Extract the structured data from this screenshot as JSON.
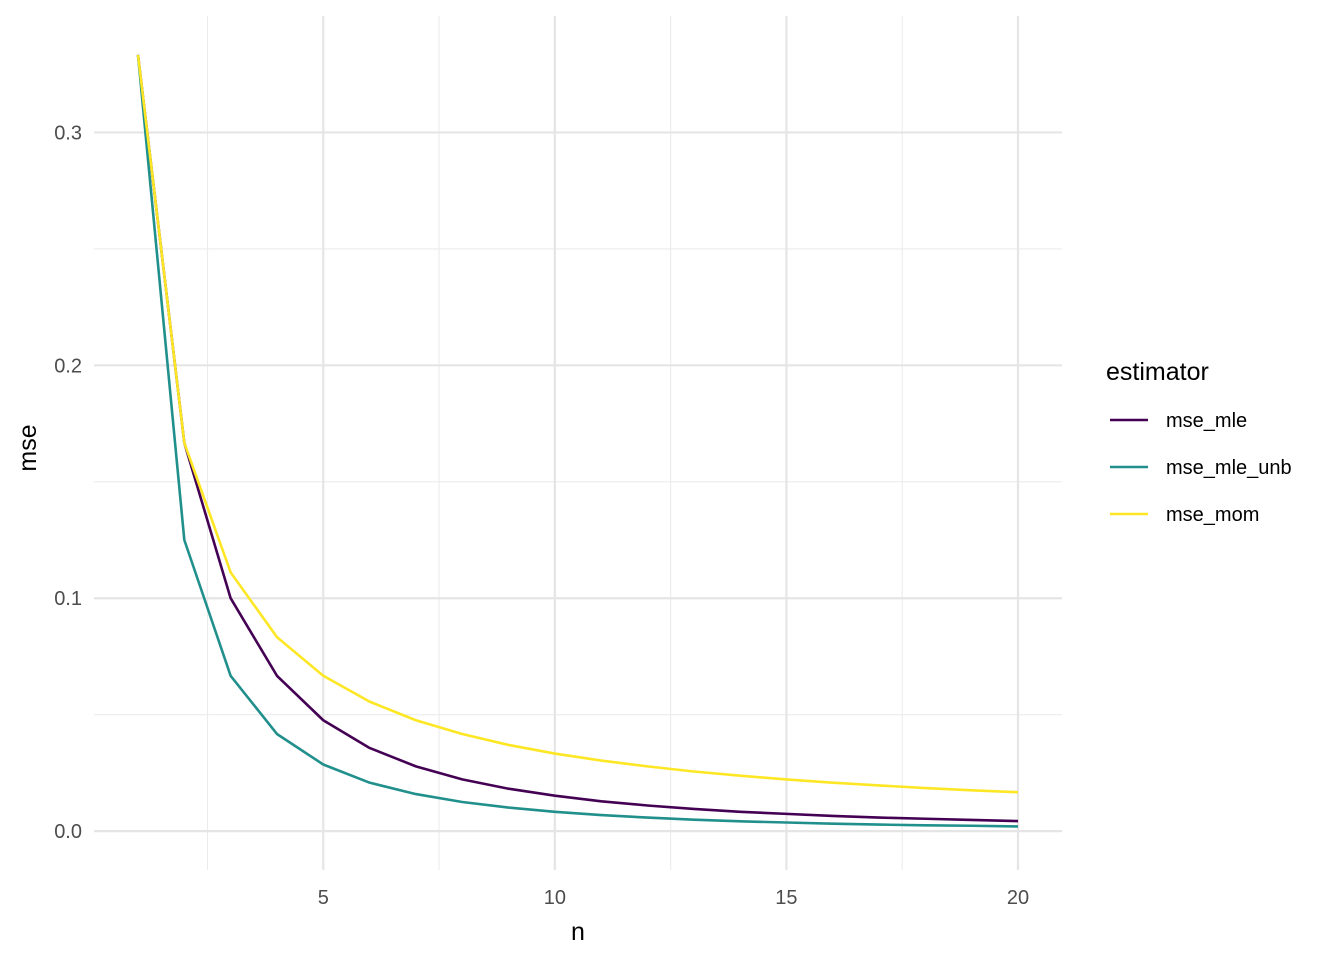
{
  "chart_data": {
    "type": "line",
    "xlabel": "n",
    "ylabel": "mse",
    "xlim": [
      0.05,
      20.95
    ],
    "ylim": [
      -0.0167,
      0.35
    ],
    "x_major_ticks": [
      5,
      10,
      15,
      20
    ],
    "x_minor_ticks": [
      2.5,
      7.5,
      12.5,
      17.5
    ],
    "y_major_ticks": [
      0.0,
      0.1,
      0.2,
      0.3
    ],
    "y_minor_ticks": [
      0.05,
      0.15,
      0.25
    ],
    "x_tick_labels": [
      "5",
      "10",
      "15",
      "20"
    ],
    "y_tick_labels": [
      "0.0",
      "0.1",
      "0.2",
      "0.3"
    ],
    "grid": true,
    "legend": {
      "title": "estimator",
      "position": "right"
    },
    "x": [
      1,
      2,
      3,
      4,
      5,
      6,
      7,
      8,
      9,
      10,
      11,
      12,
      13,
      14,
      15,
      16,
      17,
      18,
      19,
      20
    ],
    "series": [
      {
        "name": "mse_mle",
        "color": "#440154",
        "values": [
          0.3333,
          0.1667,
          0.1,
          0.0667,
          0.0476,
          0.0357,
          0.0278,
          0.0222,
          0.0182,
          0.0152,
          0.0128,
          0.011,
          0.0095,
          0.0083,
          0.0074,
          0.0065,
          0.0058,
          0.0053,
          0.0048,
          0.0043
        ]
      },
      {
        "name": "mse_mle_unb",
        "color": "#21908C",
        "values": [
          0.3333,
          0.125,
          0.0667,
          0.0417,
          0.0286,
          0.0208,
          0.0159,
          0.0125,
          0.0101,
          0.0083,
          0.0069,
          0.0058,
          0.0049,
          0.0042,
          0.0037,
          0.0032,
          0.0028,
          0.0025,
          0.0023,
          0.002
        ]
      },
      {
        "name": "mse_mom",
        "color": "#FDE725",
        "values": [
          0.3333,
          0.1667,
          0.1111,
          0.0833,
          0.0667,
          0.0556,
          0.0476,
          0.0417,
          0.037,
          0.0333,
          0.0303,
          0.0278,
          0.0256,
          0.0238,
          0.0222,
          0.0208,
          0.0196,
          0.0185,
          0.0175,
          0.0167
        ]
      }
    ]
  }
}
